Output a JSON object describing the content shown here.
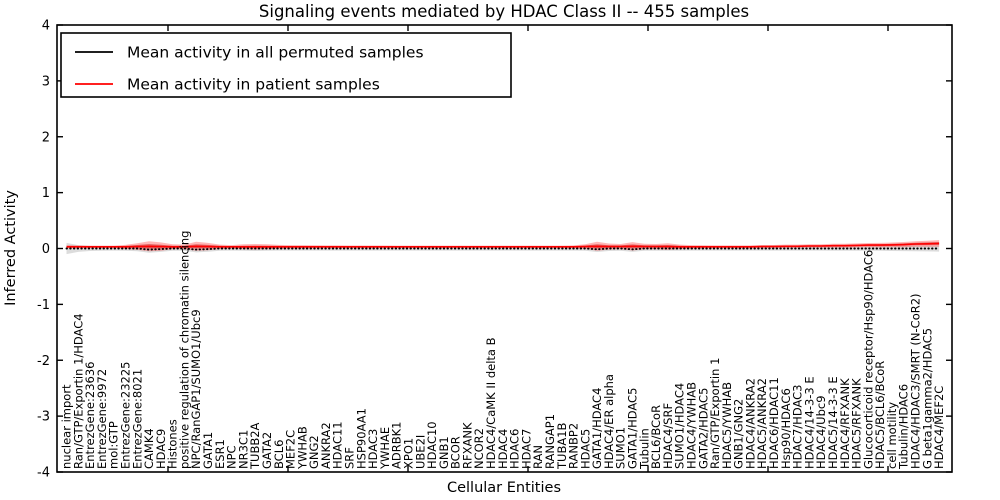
{
  "chart_data": {
    "type": "line",
    "title": "Signaling events mediated by HDAC Class II -- 455 samples",
    "xlabel": "Cellular Entities",
    "ylabel": "Inferred Activity",
    "ylim": [
      -4,
      4
    ],
    "yticks": [
      4,
      3,
      2,
      1,
      0,
      -1,
      -2,
      -3,
      -4
    ],
    "grid": false,
    "legend_position": "upper left",
    "legend": [
      {
        "label": "Mean activity in all permuted samples",
        "color": "#000000"
      },
      {
        "label": "Mean activity in patient samples",
        "color": "#ff0000"
      }
    ],
    "categories": [
      "nuclear import",
      "Ran/GTP/Exportin 1/HDAC4",
      "EntrezGene:23636",
      "EntrezGene:9972",
      "mol:GTP",
      "EntrezGene:23225",
      "EntrezGene:8021",
      "CAMK4",
      "HDAC9",
      "Histones",
      "positive regulation of chromatin silencing",
      "NPC/RanGAP1/SUMO1/Ubc9",
      "GATA1",
      "ESR1",
      "NPC",
      "NR3C1",
      "TUBB2A",
      "GATA2",
      "BCL6",
      "MEF2C",
      "YWHAB",
      "GNG2",
      "ANKRA2",
      "HDAC11",
      "SRF",
      "HSP90AA1",
      "HDAC3",
      "YWHAE",
      "ADRBK1",
      "XPO1",
      "UBE2I",
      "HDAC10",
      "GNB1",
      "BCOR",
      "RFXANK",
      "NCOR2",
      "HDAC4/CaMK II delta B",
      "HDAC4",
      "HDAC6",
      "HDAC7",
      "RAN",
      "RANGAP1",
      "TUBA1B",
      "RANBP2",
      "HDAC5",
      "GATA1/HDAC4",
      "HDAC4/ER alpha",
      "SUMO1",
      "GATA1/HDAC5",
      "Tubulin",
      "BCL6/BCoR",
      "HDAC4/SRF",
      "SUMO1/HDAC4",
      "HDAC4/YWHAB",
      "GATA2/HDAC5",
      "Ran/GTP/Exportin 1",
      "HDAC5/YWHAB",
      "GNB1/GNG2",
      "HDAC4/ANKRA2",
      "HDAC5/ANKRA2",
      "HDAC6/HDAC11",
      "Hsp90/HDAC6",
      "HDAC7/HDAC3",
      "HDAC4/14-3-3 E",
      "HDAC4/Ubc9",
      "HDAC5/14-3-3 E",
      "HDAC4/RFXANK",
      "HDAC5/RFXANK",
      "Glucocorticoid receptor/Hsp90/HDAC6",
      "HDAC5/BCL6/BCoR",
      "cell motility",
      "Tubulin/HDAC6",
      "HDAC4/HDAC3/SMRT (N-CoR2)",
      "G beta1gamma2/HDAC5",
      "HDAC4/MEF2C"
    ],
    "series": [
      {
        "name": "Mean activity in all permuted samples",
        "color": "#000000",
        "line_style": "dotted",
        "band_color": "rgba(128,128,128,0.28)",
        "values": [
          0,
          0,
          0,
          0,
          0,
          0,
          0,
          -0.02,
          -0.01,
          0,
          0,
          -0.02,
          -0.01,
          0,
          0,
          0,
          0,
          0,
          0,
          0,
          0,
          0,
          0,
          0,
          0,
          0,
          0,
          0,
          0,
          0,
          0,
          0,
          0,
          0,
          0,
          0,
          0,
          0,
          0,
          0,
          0,
          0,
          0,
          0,
          0,
          -0.015,
          0,
          0,
          -0.015,
          0,
          0,
          0,
          0,
          0,
          0,
          0,
          0,
          0,
          0,
          0,
          0,
          0,
          0,
          0,
          0,
          0,
          0,
          0,
          0,
          0,
          0,
          0,
          0,
          0,
          0
        ],
        "band_halfwidth": [
          0.1,
          0.06,
          0.045,
          0.04,
          0.038,
          0.04,
          0.05,
          0.055,
          0.05,
          0.042,
          0.04,
          0.05,
          0.048,
          0.04,
          0.038,
          0.042,
          0.045,
          0.042,
          0.038,
          0.038,
          0.038,
          0.038,
          0.038,
          0.038,
          0.038,
          0.038,
          0.038,
          0.038,
          0.038,
          0.038,
          0.038,
          0.038,
          0.038,
          0.038,
          0.038,
          0.038,
          0.038,
          0.038,
          0.038,
          0.038,
          0.038,
          0.038,
          0.038,
          0.038,
          0.042,
          0.048,
          0.044,
          0.042,
          0.046,
          0.042,
          0.04,
          0.042,
          0.04,
          0.038,
          0.038,
          0.038,
          0.038,
          0.038,
          0.038,
          0.038,
          0.038,
          0.038,
          0.038,
          0.038,
          0.038,
          0.04,
          0.04,
          0.04,
          0.042,
          0.042,
          0.044,
          0.046,
          0.05,
          0.052,
          0.055
        ]
      },
      {
        "name": "Mean activity in patient samples",
        "color": "#ff0000",
        "line_style": "solid",
        "band_color": "rgba(255,30,30,0.32)",
        "band_core_color": "rgba(200,25,25,0.50)",
        "values": [
          0.03,
          0.03,
          0.03,
          0.03,
          0.03,
          0.03,
          0.035,
          0.04,
          0.035,
          0.03,
          0.03,
          0.04,
          0.035,
          0.03,
          0.03,
          0.03,
          0.03,
          0.03,
          0.03,
          0.03,
          0.03,
          0.03,
          0.03,
          0.03,
          0.03,
          0.03,
          0.03,
          0.03,
          0.03,
          0.03,
          0.03,
          0.03,
          0.03,
          0.03,
          0.03,
          0.03,
          0.03,
          0.03,
          0.03,
          0.03,
          0.03,
          0.03,
          0.03,
          0.03,
          0.035,
          0.04,
          0.035,
          0.035,
          0.04,
          0.035,
          0.035,
          0.035,
          0.03,
          0.03,
          0.03,
          0.03,
          0.03,
          0.03,
          0.03,
          0.035,
          0.035,
          0.04,
          0.04,
          0.045,
          0.045,
          0.05,
          0.05,
          0.055,
          0.06,
          0.06,
          0.065,
          0.07,
          0.08,
          0.085,
          0.09
        ],
        "band_halfwidth": [
          0.03,
          0.025,
          0.022,
          0.022,
          0.022,
          0.035,
          0.06,
          0.09,
          0.075,
          0.045,
          0.04,
          0.08,
          0.065,
          0.04,
          0.03,
          0.045,
          0.05,
          0.045,
          0.035,
          0.03,
          0.03,
          0.028,
          0.026,
          0.025,
          0.024,
          0.024,
          0.024,
          0.023,
          0.022,
          0.022,
          0.022,
          0.022,
          0.022,
          0.022,
          0.022,
          0.022,
          0.022,
          0.022,
          0.022,
          0.022,
          0.022,
          0.022,
          0.022,
          0.025,
          0.04,
          0.08,
          0.055,
          0.045,
          0.075,
          0.05,
          0.045,
          0.06,
          0.04,
          0.03,
          0.028,
          0.026,
          0.026,
          0.026,
          0.026,
          0.028,
          0.028,
          0.03,
          0.03,
          0.032,
          0.032,
          0.034,
          0.034,
          0.036,
          0.038,
          0.04,
          0.042,
          0.046,
          0.05,
          0.055,
          0.06
        ]
      }
    ]
  }
}
